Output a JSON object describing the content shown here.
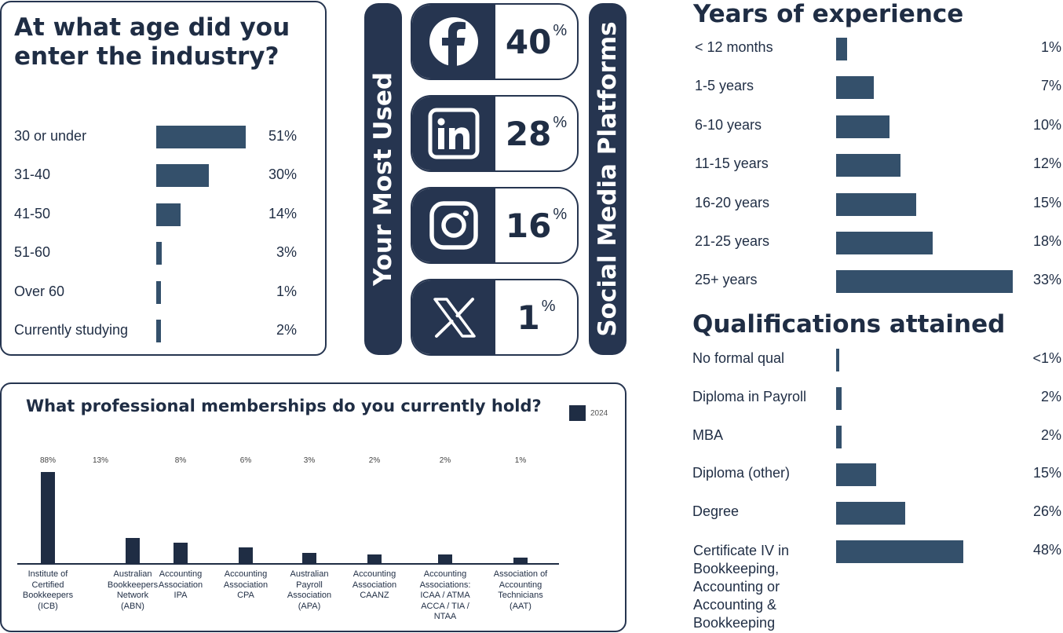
{
  "colors": {
    "navy": "#263550",
    "bar": "#34506b",
    "text": "#1f2d44"
  },
  "age_chart": {
    "title_line1": "At what age did you",
    "title_line2": "enter the industry?",
    "rows": [
      {
        "label": "30 or under",
        "value": 51,
        "value_label": "51%"
      },
      {
        "label": "31-40",
        "value": 30,
        "value_label": "30%"
      },
      {
        "label": "41-50",
        "value": 14,
        "value_label": "14%"
      },
      {
        "label": "51-60",
        "value": 3,
        "value_label": "3%"
      },
      {
        "label": "Over 60",
        "value": 1,
        "value_label": "1%"
      },
      {
        "label": "Currently studying",
        "value": 2,
        "value_label": "2%"
      }
    ]
  },
  "social": {
    "left_label": "Your Most Used",
    "right_label": "Social Media Platforms",
    "percent_symbol": "%",
    "platforms": [
      {
        "icon": "facebook-icon",
        "value": "40"
      },
      {
        "icon": "linkedin-icon",
        "value": "28"
      },
      {
        "icon": "instagram-icon",
        "value": "16"
      },
      {
        "icon": "x-icon",
        "value": "1"
      }
    ]
  },
  "experience": {
    "title": "Years of experience",
    "rows": [
      {
        "label": "< 12 months",
        "value": 1,
        "value_label": "1%"
      },
      {
        "label": "1-5 years",
        "value": 7,
        "value_label": "7%"
      },
      {
        "label": "6-10 years",
        "value": 10,
        "value_label": "10%"
      },
      {
        "label": "11-15 years",
        "value": 12,
        "value_label": "12%"
      },
      {
        "label": "16-20 years",
        "value": 15,
        "value_label": "15%"
      },
      {
        "label": "21-25 years",
        "value": 18,
        "value_label": "18%"
      },
      {
        "label": "25+ years",
        "value": 33,
        "value_label": "33%"
      }
    ]
  },
  "qualifications": {
    "title": "Qualifications attained",
    "rows": [
      {
        "label": "No formal qual",
        "value": 0.5,
        "value_label": "<1%"
      },
      {
        "label": "Diploma in Payroll",
        "value": 2,
        "value_label": "2%"
      },
      {
        "label": "MBA",
        "value": 2,
        "value_label": "2%"
      },
      {
        "label": "Diploma (other)",
        "value": 15,
        "value_label": "15%"
      },
      {
        "label": "Degree",
        "value": 26,
        "value_label": "26%"
      },
      {
        "label": "Certificate IV  in Bookkeeping, Accounting or Accounting & Bookkeeping",
        "value": 48,
        "value_label": "48%"
      }
    ]
  },
  "memberships": {
    "title": "What professional memberships do you currently hold?",
    "legend": "2024"
  },
  "chart_data": [
    {
      "type": "bar",
      "title": "At what age did you enter the industry?",
      "categories": [
        "30 or under",
        "31-40",
        "41-50",
        "51-60",
        "Over 60",
        "Currently studying"
      ],
      "values": [
        51,
        30,
        14,
        3,
        1,
        2
      ]
    },
    {
      "type": "bar",
      "title": "Your Most Used Social Media Platforms",
      "categories": [
        "Facebook",
        "LinkedIn",
        "Instagram",
        "X"
      ],
      "values": [
        40,
        28,
        16,
        1
      ]
    },
    {
      "type": "bar",
      "title": "Years of experience",
      "categories": [
        "< 12 months",
        "1-5 years",
        "6-10 years",
        "11-15 years",
        "16-20 years",
        "21-25 years",
        "25+ years"
      ],
      "values": [
        1,
        7,
        10,
        12,
        15,
        18,
        33
      ]
    },
    {
      "type": "bar",
      "title": "Qualifications attained",
      "categories": [
        "No formal qual",
        "Diploma in Payroll",
        "MBA",
        "Diploma (other)",
        "Degree",
        "Certificate IV  in Bookkeeping, Accounting or Accounting & Bookkeeping"
      ],
      "values": [
        0.5,
        2,
        2,
        15,
        26,
        48
      ]
    },
    {
      "type": "bar",
      "title": "What professional memberships do you currently hold?",
      "legend": [
        "2024"
      ],
      "categories": [
        "Institute of Certified Bookkeepers (ICB)",
        "Australian Bookkeepers Network (ABN)",
        "Accounting Association IPA",
        "Accounting Association CPA",
        "Australian Payroll Association (APA)",
        "Accounting Association CAANZ",
        "Accounting Associations: ICAA / ATMA ACCA / TIA / NTAA",
        "Association of Accounting Technicians (AAT)"
      ],
      "series": [
        {
          "name": "2024",
          "values": [
            88,
            13,
            8,
            6,
            3,
            2,
            2,
            1
          ],
          "value_labels": [
            "88%",
            "13%",
            "8%",
            "6%",
            "3%",
            "2%",
            "2%",
            "1%"
          ],
          "bar_values": [
            88,
            24,
            20,
            15,
            10,
            8,
            8,
            5
          ]
        }
      ],
      "labels": [
        [
          "Institute of",
          "Certified",
          "Bookkeepers",
          "(ICB)"
        ],
        [
          "Australian",
          "Bookkeepers",
          "Network",
          "(ABN)"
        ],
        [
          "Accounting",
          "Association",
          "IPA"
        ],
        [
          "Accounting",
          "Association",
          "CPA"
        ],
        [
          "Australian",
          "Payroll",
          "Association",
          "(APA)"
        ],
        [
          "Accounting",
          "Association",
          "CAANZ"
        ],
        [
          "Accounting",
          "Associations:",
          "ICAA / ATMA",
          "ACCA / TIA /",
          "NTAA"
        ],
        [
          "Association of",
          "Accounting",
          "Technicians",
          "(AAT)"
        ]
      ]
    }
  ]
}
